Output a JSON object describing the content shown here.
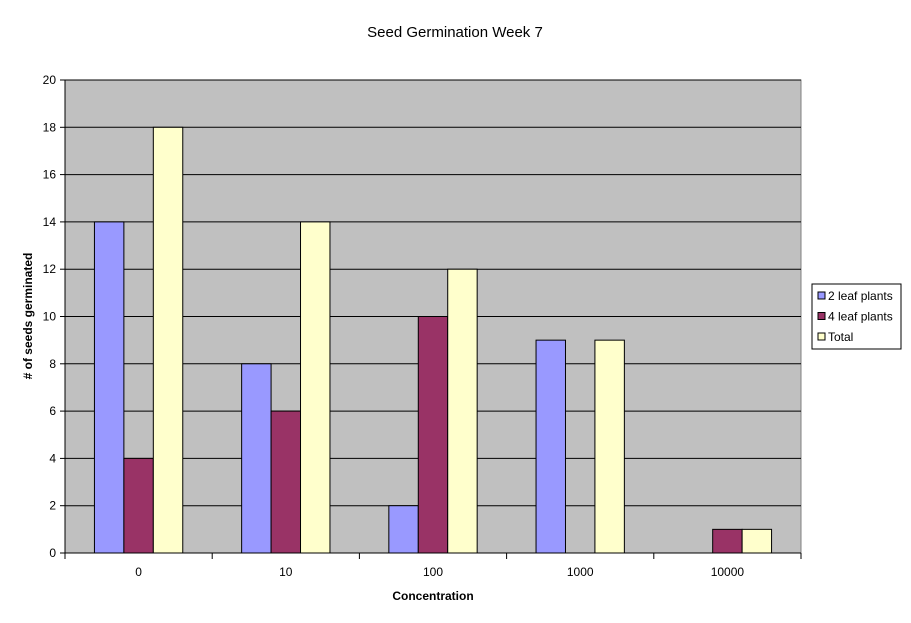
{
  "chart_data": {
    "type": "bar",
    "title": "Seed Germination Week 7",
    "xlabel": "Concentration",
    "ylabel": "# of seeds germinated",
    "categories": [
      "0",
      "10",
      "100",
      "1000",
      "10000"
    ],
    "series": [
      {
        "name": "2 leaf plants",
        "values": [
          14,
          8,
          2,
          9,
          0
        ],
        "color": "#9999ff"
      },
      {
        "name": "4 leaf plants",
        "values": [
          4,
          6,
          10,
          0,
          1
        ],
        "color": "#993366"
      },
      {
        "name": "Total",
        "values": [
          18,
          14,
          12,
          9,
          1
        ],
        "color": "#ffffcc"
      }
    ],
    "ylim": [
      0,
      20
    ],
    "yticks": [
      0,
      2,
      4,
      6,
      8,
      10,
      12,
      14,
      16,
      18,
      20
    ],
    "grid": true,
    "plot_background": "#c0c0c0",
    "legend_position": "right"
  }
}
